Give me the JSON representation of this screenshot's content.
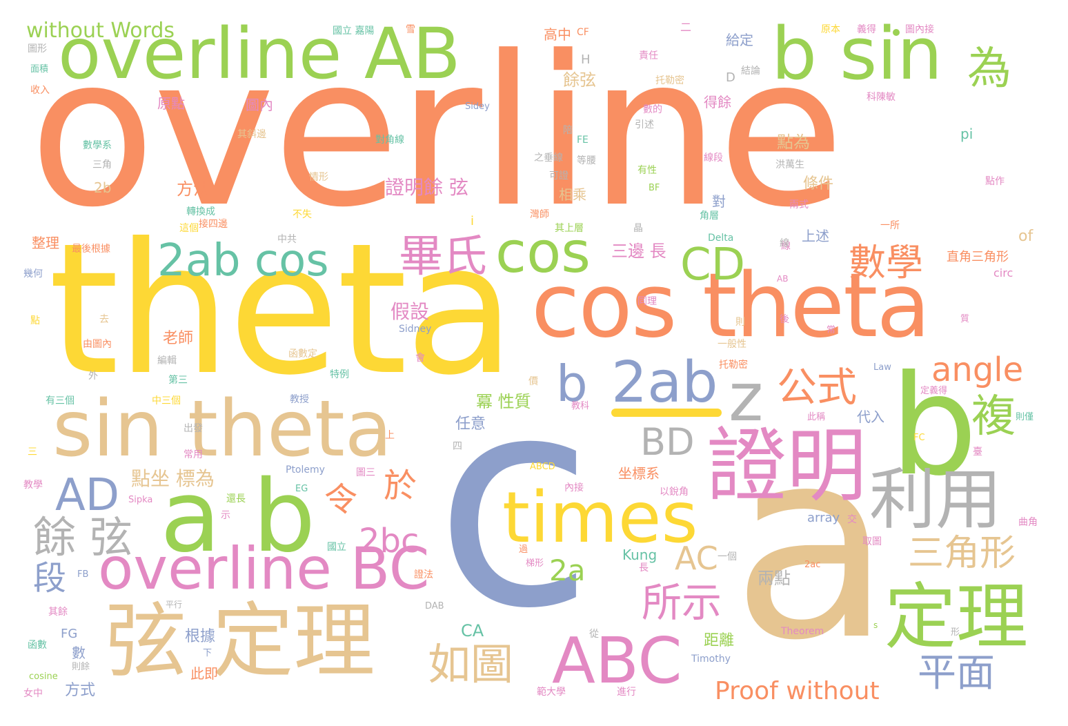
{
  "colors": {
    "orange": "#f98f62",
    "yellow": "#fdd835",
    "green": "#9bd153",
    "tan": "#e6c591",
    "blue": "#8d9fcb",
    "pink": "#e389c3",
    "gray": "#b3b3b3",
    "teal": "#66c2a5"
  },
  "words": [
    {
      "t": "overline",
      "c": "orange"
    },
    {
      "t": "theta",
      "c": "yellow"
    },
    {
      "t": "c",
      "c": "blue"
    },
    {
      "t": "a",
      "c": "tan"
    },
    {
      "t": "cos theta",
      "c": "orange"
    },
    {
      "t": "overline AB",
      "c": "green"
    },
    {
      "t": "sin theta",
      "c": "tan"
    },
    {
      "t": "b sin",
      "c": "green"
    },
    {
      "t": "b",
      "c": "green"
    },
    {
      "t": "a b",
      "c": "green"
    },
    {
      "t": "弦 定理",
      "c": "tan"
    },
    {
      "t": "times",
      "c": "yellow"
    },
    {
      "t": "定理",
      "c": "green"
    },
    {
      "t": "證明",
      "c": "pink"
    },
    {
      "t": "overline BC",
      "c": "pink"
    },
    {
      "t": "ABC",
      "c": "pink"
    },
    {
      "t": "2ab cos",
      "c": "teal"
    },
    {
      "t": "cos",
      "c": "green"
    },
    {
      "t": "b",
      "c": "blue"
    },
    {
      "t": "2ab",
      "c": "blue"
    },
    {
      "t": "z",
      "c": "gray"
    },
    {
      "t": "利用",
      "c": "gray"
    },
    {
      "t": "為",
      "c": "green"
    },
    {
      "t": "畢氏",
      "c": "pink"
    },
    {
      "t": "CD",
      "c": "green"
    },
    {
      "t": "數學",
      "c": "orange"
    },
    {
      "t": "公式",
      "c": "orange"
    },
    {
      "t": "複",
      "c": "green"
    },
    {
      "t": "angle",
      "c": "orange"
    },
    {
      "t": "BD",
      "c": "gray"
    },
    {
      "t": "AD",
      "c": "blue"
    },
    {
      "t": "餘 弦",
      "c": "gray"
    },
    {
      "t": "令",
      "c": "orange"
    },
    {
      "t": "於",
      "c": "orange"
    },
    {
      "t": "2bc",
      "c": "pink"
    },
    {
      "t": "如圖",
      "c": "tan"
    },
    {
      "t": "所示",
      "c": "pink"
    },
    {
      "t": "三角形",
      "c": "tan"
    },
    {
      "t": "平面",
      "c": "blue"
    },
    {
      "t": "AC",
      "c": "tan"
    },
    {
      "t": "2a",
      "c": "green"
    },
    {
      "t": "段",
      "c": "blue"
    },
    {
      "t": "Proof without",
      "c": "orange"
    },
    {
      "t": "without Words",
      "c": "green"
    },
    {
      "t": "點坐 標為",
      "c": "tan"
    },
    {
      "t": "假設",
      "c": "pink"
    },
    {
      "t": "證明餘 弦",
      "c": "pink"
    },
    {
      "t": "冪 性質",
      "c": "green"
    },
    {
      "t": "方法",
      "c": "orange"
    },
    {
      "t": "老師",
      "c": "orange"
    },
    {
      "t": "CA",
      "c": "teal"
    },
    {
      "t": "Kung",
      "c": "teal"
    },
    {
      "t": "兩點",
      "c": "gray"
    },
    {
      "t": "距離",
      "c": "green"
    },
    {
      "t": "三邊 長",
      "c": "pink"
    },
    {
      "t": "點為",
      "c": "tan"
    },
    {
      "t": "餘弦",
      "c": "tan"
    },
    {
      "t": "相乘",
      "c": "tan"
    },
    {
      "t": "條件",
      "c": "tan"
    },
    {
      "t": "對",
      "c": "blue"
    },
    {
      "t": "上述",
      "c": "blue"
    },
    {
      "t": "坐標系",
      "c": "orange"
    },
    {
      "t": "任意",
      "c": "blue"
    },
    {
      "t": "代入",
      "c": "blue"
    },
    {
      "t": "根據",
      "c": "blue"
    },
    {
      "t": "此即",
      "c": "orange"
    },
    {
      "t": "方式",
      "c": "blue"
    },
    {
      "t": "數",
      "c": "blue"
    },
    {
      "t": "FG",
      "c": "blue"
    },
    {
      "t": "整理",
      "c": "orange"
    },
    {
      "t": "高中",
      "c": "orange"
    },
    {
      "t": "給定",
      "c": "blue"
    },
    {
      "t": "原點",
      "c": "pink"
    },
    {
      "t": "圖內",
      "c": "pink"
    },
    {
      "t": "得餘",
      "c": "pink"
    },
    {
      "t": "pi",
      "c": "teal"
    },
    {
      "t": "of",
      "c": "tan"
    },
    {
      "t": "直角三角形",
      "c": "orange"
    },
    {
      "t": "circ",
      "c": "pink"
    },
    {
      "t": "array",
      "c": "blue"
    },
    {
      "t": "Ptolemy",
      "c": "blue"
    },
    {
      "t": "Sidney",
      "c": "blue"
    },
    {
      "t": "Timothy",
      "c": "blue"
    },
    {
      "t": "Theorem",
      "c": "pink"
    },
    {
      "t": "Delta",
      "c": "teal"
    },
    {
      "t": "cosine",
      "c": "green"
    },
    {
      "t": "2b",
      "c": "tan"
    },
    {
      "t": "2ac",
      "c": "orange"
    },
    {
      "t": "ABCD",
      "c": "yellow"
    },
    {
      "t": "D",
      "c": "gray"
    },
    {
      "t": "H",
      "c": "gray"
    },
    {
      "t": "i",
      "c": "yellow"
    },
    {
      "t": "CF",
      "c": "orange"
    },
    {
      "t": "FE",
      "c": "teal"
    },
    {
      "t": "BF",
      "c": "green"
    },
    {
      "t": "FC",
      "c": "yellow"
    },
    {
      "t": "FB",
      "c": "blue"
    },
    {
      "t": "EG",
      "c": "teal"
    },
    {
      "t": "DAB",
      "c": "gray"
    },
    {
      "t": "AB",
      "c": "pink"
    },
    {
      "t": "Law",
      "c": "blue"
    },
    {
      "t": "Sidey",
      "c": "blue"
    },
    {
      "t": "Sipka",
      "c": "pink"
    },
    {
      "t": "s",
      "c": "green"
    },
    {
      "t": "國立 嘉陽",
      "c": "teal"
    },
    {
      "t": "雪",
      "c": "orange"
    },
    {
      "t": "圖形",
      "c": "gray"
    },
    {
      "t": "面積",
      "c": "teal"
    },
    {
      "t": "收入",
      "c": "orange"
    },
    {
      "t": "其斜邊",
      "c": "tan"
    },
    {
      "t": "數學系",
      "c": "teal"
    },
    {
      "t": "三角",
      "c": "gray"
    },
    {
      "t": "轉換成",
      "c": "teal"
    },
    {
      "t": "這個",
      "c": "yellow"
    },
    {
      "t": "接四邊",
      "c": "orange"
    },
    {
      "t": "不失",
      "c": "yellow"
    },
    {
      "t": "最後根據",
      "c": "orange"
    },
    {
      "t": "中共",
      "c": "gray"
    },
    {
      "t": "幾何",
      "c": "blue"
    },
    {
      "t": "去",
      "c": "tan"
    },
    {
      "t": "由圖內",
      "c": "orange"
    },
    {
      "t": "點",
      "c": "yellow"
    },
    {
      "t": "編輯",
      "c": "gray"
    },
    {
      "t": "第三",
      "c": "teal"
    },
    {
      "t": "有三個",
      "c": "teal"
    },
    {
      "t": "中三個",
      "c": "yellow"
    },
    {
      "t": "出發",
      "c": "gray"
    },
    {
      "t": "常用",
      "c": "pink"
    },
    {
      "t": "三",
      "c": "yellow"
    },
    {
      "t": "教學",
      "c": "pink"
    },
    {
      "t": "其餘",
      "c": "pink"
    },
    {
      "t": "函數",
      "c": "teal"
    },
    {
      "t": "女中",
      "c": "pink"
    },
    {
      "t": "則餘",
      "c": "gray"
    },
    {
      "t": "平行",
      "c": "gray"
    },
    {
      "t": "下",
      "c": "blue"
    },
    {
      "t": "對角線",
      "c": "teal"
    },
    {
      "t": "情形",
      "c": "tan"
    },
    {
      "t": "之垂線",
      "c": "gray"
    },
    {
      "t": "可證",
      "c": "gray"
    },
    {
      "t": "等腰",
      "c": "gray"
    },
    {
      "t": "引述",
      "c": "gray"
    },
    {
      "t": "洪萬生",
      "c": "gray"
    },
    {
      "t": "點作",
      "c": "pink"
    },
    {
      "t": "兩式",
      "c": "pink"
    },
    {
      "t": "一所",
      "c": "orange"
    },
    {
      "t": "科陳敏",
      "c": "pink"
    },
    {
      "t": "原本",
      "c": "yellow"
    },
    {
      "t": "義得",
      "c": "pink"
    },
    {
      "t": "圖內接",
      "c": "pink"
    },
    {
      "t": "責任",
      "c": "pink"
    },
    {
      "t": "托勒密",
      "c": "tan"
    },
    {
      "t": "結論",
      "c": "gray"
    },
    {
      "t": "數的",
      "c": "pink"
    },
    {
      "t": "有性",
      "c": "green"
    },
    {
      "t": "線段",
      "c": "pink"
    },
    {
      "t": "同理",
      "c": "pink"
    },
    {
      "t": "線",
      "c": "pink"
    },
    {
      "t": "則",
      "c": "tan"
    },
    {
      "t": "後",
      "c": "pink"
    },
    {
      "t": "一般性",
      "c": "tan"
    },
    {
      "t": "托勒密",
      "c": "orange"
    },
    {
      "t": "函數定",
      "c": "tan"
    },
    {
      "t": "特例",
      "c": "teal"
    },
    {
      "t": "教授",
      "c": "blue"
    },
    {
      "t": "教科",
      "c": "pink"
    },
    {
      "t": "價",
      "c": "tan"
    },
    {
      "t": "此稱",
      "c": "pink"
    },
    {
      "t": "定義得",
      "c": "pink"
    },
    {
      "t": "則僅",
      "c": "teal"
    },
    {
      "t": "質",
      "c": "pink"
    },
    {
      "t": "常",
      "c": "pink"
    },
    {
      "t": "曲角",
      "c": "pink"
    },
    {
      "t": "取圖",
      "c": "pink"
    },
    {
      "t": "以銳角",
      "c": "pink"
    },
    {
      "t": "內接",
      "c": "pink"
    },
    {
      "t": "圖三",
      "c": "pink"
    },
    {
      "t": "一個",
      "c": "gray"
    },
    {
      "t": "過",
      "c": "orange"
    },
    {
      "t": "梯形",
      "c": "pink"
    },
    {
      "t": "長",
      "c": "pink"
    },
    {
      "t": "從",
      "c": "gray"
    },
    {
      "t": "進行",
      "c": "pink"
    },
    {
      "t": "範大學",
      "c": "pink"
    },
    {
      "t": "證法",
      "c": "orange"
    },
    {
      "t": "還長",
      "c": "green"
    },
    {
      "t": "國立",
      "c": "teal"
    },
    {
      "t": "形",
      "c": "gray"
    },
    {
      "t": "交",
      "c": "pink"
    },
    {
      "t": "臺",
      "c": "pink"
    },
    {
      "t": "四",
      "c": "gray"
    },
    {
      "t": "上",
      "c": "orange"
    },
    {
      "t": "外",
      "c": "gray"
    },
    {
      "t": "示",
      "c": "pink"
    },
    {
      "t": "會",
      "c": "pink"
    },
    {
      "t": "陪",
      "c": "gray"
    },
    {
      "t": "灣師",
      "c": "orange"
    },
    {
      "t": "其上層",
      "c": "green"
    },
    {
      "t": "晶",
      "c": "gray"
    },
    {
      "t": "角層",
      "c": "teal"
    },
    {
      "t": "二",
      "c": "pink"
    },
    {
      "t": "線",
      "c": "gray"
    }
  ]
}
